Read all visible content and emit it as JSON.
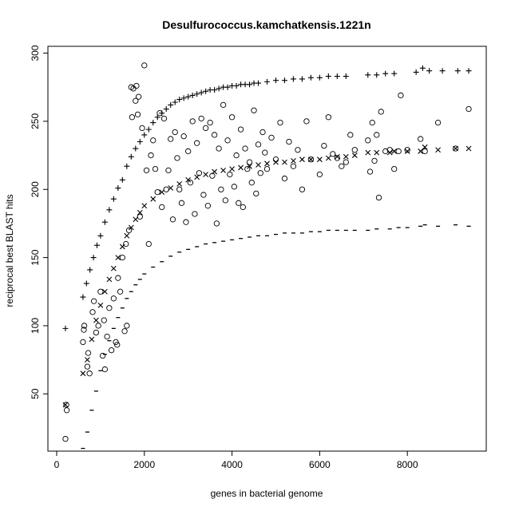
{
  "chart_data": {
    "type": "scatter",
    "title": "Desulfurococcus.kamchatkensis.1221n",
    "xlabel": "genes in bacterial genome",
    "ylabel": "reciprocal best BLAST hits",
    "xlim": [
      -200,
      9800
    ],
    "ylim": [
      8,
      305
    ],
    "x_ticks": [
      0,
      2000,
      4000,
      6000,
      8000
    ],
    "y_ticks": [
      50,
      100,
      150,
      200,
      250,
      300
    ],
    "grid": false,
    "legend": "none",
    "series": [
      {
        "marker": "plus",
        "points": [
          [
            200,
            98
          ],
          [
            600,
            121
          ],
          [
            680,
            131
          ],
          [
            760,
            141
          ],
          [
            840,
            150
          ],
          [
            920,
            159
          ],
          [
            1000,
            166
          ],
          [
            1100,
            176
          ],
          [
            1200,
            185
          ],
          [
            1300,
            193
          ],
          [
            1400,
            201
          ],
          [
            1500,
            207
          ],
          [
            1600,
            217
          ],
          [
            1700,
            224
          ],
          [
            1800,
            230
          ],
          [
            1900,
            235
          ],
          [
            2000,
            240
          ],
          [
            2100,
            244
          ],
          [
            2200,
            249
          ],
          [
            2300,
            253
          ],
          [
            2400,
            256
          ],
          [
            2500,
            259
          ],
          [
            2600,
            262
          ],
          [
            2700,
            264
          ],
          [
            2800,
            266
          ],
          [
            2900,
            267
          ],
          [
            3000,
            268
          ],
          [
            3100,
            269
          ],
          [
            3200,
            270
          ],
          [
            3300,
            271
          ],
          [
            3400,
            272
          ],
          [
            3500,
            273
          ],
          [
            3600,
            273
          ],
          [
            3700,
            274
          ],
          [
            3800,
            275
          ],
          [
            3900,
            275
          ],
          [
            4000,
            276
          ],
          [
            4100,
            276
          ],
          [
            4200,
            277
          ],
          [
            4300,
            277
          ],
          [
            4400,
            277
          ],
          [
            4500,
            278
          ],
          [
            4600,
            278
          ],
          [
            4800,
            279
          ],
          [
            5000,
            280
          ],
          [
            5200,
            280
          ],
          [
            5400,
            281
          ],
          [
            5600,
            281
          ],
          [
            5800,
            282
          ],
          [
            6000,
            282
          ],
          [
            6200,
            283
          ],
          [
            6400,
            283
          ],
          [
            6600,
            283
          ],
          [
            7100,
            284
          ],
          [
            7300,
            284
          ],
          [
            7500,
            285
          ],
          [
            7700,
            285
          ],
          [
            8200,
            286
          ],
          [
            8350,
            289
          ],
          [
            8500,
            287
          ],
          [
            8800,
            287
          ],
          [
            9150,
            287
          ],
          [
            9400,
            287
          ]
        ]
      },
      {
        "marker": "x",
        "points": [
          [
            200,
            42
          ],
          [
            600,
            65
          ],
          [
            700,
            75
          ],
          [
            800,
            90
          ],
          [
            900,
            104
          ],
          [
            1000,
            115
          ],
          [
            1100,
            125
          ],
          [
            1200,
            134
          ],
          [
            1300,
            142
          ],
          [
            1400,
            150
          ],
          [
            1500,
            158
          ],
          [
            1600,
            166
          ],
          [
            1700,
            172
          ],
          [
            1800,
            178
          ],
          [
            1900,
            183
          ],
          [
            2000,
            188
          ],
          [
            2200,
            193
          ],
          [
            2400,
            198
          ],
          [
            2600,
            201
          ],
          [
            2800,
            204
          ],
          [
            3000,
            207
          ],
          [
            3200,
            209
          ],
          [
            3400,
            211
          ],
          [
            3600,
            213
          ],
          [
            3800,
            214
          ],
          [
            4000,
            215
          ],
          [
            4200,
            216
          ],
          [
            4400,
            217
          ],
          [
            4600,
            218
          ],
          [
            4800,
            219
          ],
          [
            5000,
            220
          ],
          [
            5200,
            220
          ],
          [
            5400,
            221
          ],
          [
            5600,
            222
          ],
          [
            5800,
            222
          ],
          [
            6000,
            222
          ],
          [
            6200,
            223
          ],
          [
            6400,
            224
          ],
          [
            6600,
            224
          ],
          [
            6800,
            225
          ],
          [
            7100,
            227
          ],
          [
            7300,
            227
          ],
          [
            7600,
            227
          ],
          [
            7700,
            228
          ],
          [
            8000,
            228
          ],
          [
            8300,
            228
          ],
          [
            8400,
            231
          ],
          [
            8700,
            229
          ],
          [
            9100,
            230
          ],
          [
            9400,
            230
          ]
        ]
      },
      {
        "marker": "dash",
        "points": [
          [
            600,
            10
          ],
          [
            700,
            22
          ],
          [
            800,
            38
          ],
          [
            900,
            52
          ],
          [
            1000,
            67
          ],
          [
            1100,
            79
          ],
          [
            1200,
            89
          ],
          [
            1300,
            98
          ],
          [
            1400,
            106
          ],
          [
            1500,
            113
          ],
          [
            1600,
            120
          ],
          [
            1700,
            125
          ],
          [
            1800,
            130
          ],
          [
            1900,
            134
          ],
          [
            2000,
            138
          ],
          [
            2200,
            143
          ],
          [
            2400,
            147
          ],
          [
            2600,
            151
          ],
          [
            2800,
            154
          ],
          [
            3000,
            156
          ],
          [
            3200,
            158
          ],
          [
            3400,
            160
          ],
          [
            3600,
            161
          ],
          [
            3800,
            162
          ],
          [
            4000,
            163
          ],
          [
            4200,
            164
          ],
          [
            4400,
            165
          ],
          [
            4600,
            166
          ],
          [
            4800,
            166
          ],
          [
            5000,
            167
          ],
          [
            5200,
            168
          ],
          [
            5400,
            168
          ],
          [
            5600,
            168
          ],
          [
            5800,
            169
          ],
          [
            6000,
            169
          ],
          [
            6200,
            170
          ],
          [
            6400,
            170
          ],
          [
            6600,
            170
          ],
          [
            6800,
            170
          ],
          [
            7100,
            170
          ],
          [
            7300,
            171
          ],
          [
            7600,
            171
          ],
          [
            7800,
            172
          ],
          [
            8000,
            172
          ],
          [
            8300,
            173
          ],
          [
            8400,
            174
          ],
          [
            8700,
            173
          ],
          [
            9100,
            174
          ],
          [
            9400,
            173
          ]
        ]
      },
      {
        "marker": "circle",
        "points": [
          [
            200,
            17
          ],
          [
            230,
            38
          ],
          [
            220,
            42
          ],
          [
            600,
            88
          ],
          [
            620,
            97
          ],
          [
            630,
            100
          ],
          [
            700,
            70
          ],
          [
            720,
            80
          ],
          [
            750,
            65
          ],
          [
            820,
            110
          ],
          [
            850,
            118
          ],
          [
            900,
            95
          ],
          [
            950,
            100
          ],
          [
            1000,
            125
          ],
          [
            1050,
            78
          ],
          [
            1080,
            104
          ],
          [
            1100,
            68
          ],
          [
            1150,
            92
          ],
          [
            1200,
            113
          ],
          [
            1250,
            82
          ],
          [
            1300,
            120
          ],
          [
            1350,
            88
          ],
          [
            1380,
            86
          ],
          [
            1400,
            135
          ],
          [
            1450,
            125
          ],
          [
            1500,
            150
          ],
          [
            1550,
            96
          ],
          [
            1580,
            160
          ],
          [
            1600,
            100
          ],
          [
            1650,
            170
          ],
          [
            1700,
            275
          ],
          [
            1720,
            253
          ],
          [
            1750,
            274
          ],
          [
            1800,
            265
          ],
          [
            1820,
            276
          ],
          [
            1850,
            255
          ],
          [
            1870,
            268
          ],
          [
            1900,
            180
          ],
          [
            1950,
            245
          ],
          [
            2000,
            291
          ],
          [
            2050,
            214
          ],
          [
            2100,
            160
          ],
          [
            2150,
            225
          ],
          [
            2200,
            236
          ],
          [
            2250,
            215
          ],
          [
            2300,
            198
          ],
          [
            2350,
            256
          ],
          [
            2400,
            187
          ],
          [
            2450,
            252
          ],
          [
            2500,
            200
          ],
          [
            2550,
            214
          ],
          [
            2600,
            237
          ],
          [
            2650,
            178
          ],
          [
            2700,
            242
          ],
          [
            2750,
            223
          ],
          [
            2800,
            200
          ],
          [
            2850,
            190
          ],
          [
            2900,
            239
          ],
          [
            2950,
            176
          ],
          [
            3000,
            228
          ],
          [
            3050,
            205
          ],
          [
            3100,
            250
          ],
          [
            3150,
            182
          ],
          [
            3200,
            234
          ],
          [
            3250,
            212
          ],
          [
            3300,
            252
          ],
          [
            3350,
            196
          ],
          [
            3400,
            245
          ],
          [
            3450,
            188
          ],
          [
            3500,
            249
          ],
          [
            3550,
            210
          ],
          [
            3600,
            240
          ],
          [
            3650,
            175
          ],
          [
            3700,
            230
          ],
          [
            3750,
            200
          ],
          [
            3800,
            262
          ],
          [
            3850,
            192
          ],
          [
            3900,
            236
          ],
          [
            3950,
            211
          ],
          [
            4000,
            253
          ],
          [
            4050,
            202
          ],
          [
            4100,
            225
          ],
          [
            4150,
            190
          ],
          [
            4200,
            244
          ],
          [
            4250,
            187
          ],
          [
            4300,
            230
          ],
          [
            4350,
            215
          ],
          [
            4400,
            220
          ],
          [
            4450,
            205
          ],
          [
            4500,
            258
          ],
          [
            4550,
            197
          ],
          [
            4600,
            233
          ],
          [
            4650,
            212
          ],
          [
            4700,
            242
          ],
          [
            4750,
            227
          ],
          [
            4800,
            215
          ],
          [
            4900,
            238
          ],
          [
            5000,
            222
          ],
          [
            5100,
            249
          ],
          [
            5200,
            208
          ],
          [
            5300,
            235
          ],
          [
            5400,
            217
          ],
          [
            5500,
            229
          ],
          [
            5600,
            200
          ],
          [
            5700,
            250
          ],
          [
            5800,
            222
          ],
          [
            6000,
            211
          ],
          [
            6100,
            232
          ],
          [
            6200,
            253
          ],
          [
            6300,
            226
          ],
          [
            6400,
            223
          ],
          [
            6500,
            217
          ],
          [
            6600,
            220
          ],
          [
            6700,
            240
          ],
          [
            6800,
            229
          ],
          [
            7100,
            236
          ],
          [
            7150,
            213
          ],
          [
            7200,
            249
          ],
          [
            7250,
            221
          ],
          [
            7300,
            240
          ],
          [
            7350,
            194
          ],
          [
            7400,
            257
          ],
          [
            7500,
            228
          ],
          [
            7600,
            229
          ],
          [
            7700,
            215
          ],
          [
            7800,
            228
          ],
          [
            7850,
            269
          ],
          [
            8000,
            229
          ],
          [
            8300,
            237
          ],
          [
            8400,
            228
          ],
          [
            8700,
            249
          ],
          [
            9100,
            230
          ],
          [
            9400,
            259
          ]
        ]
      }
    ]
  }
}
